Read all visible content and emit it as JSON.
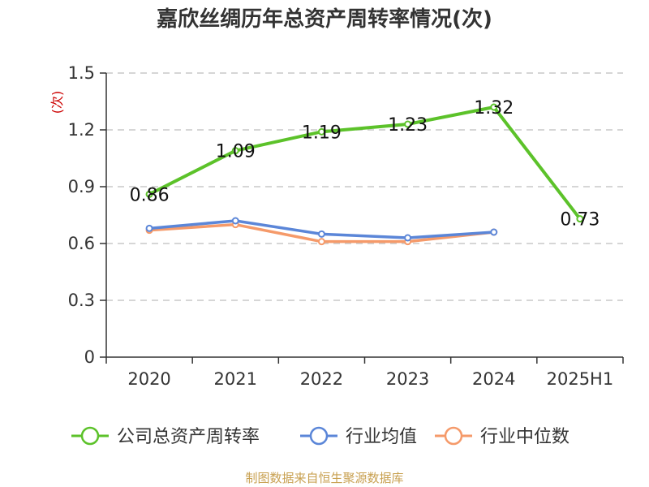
{
  "chart_data": {
    "type": "line",
    "title": "嘉欣丝绸历年总资产周转率情况(次)",
    "ylabel": "(次)",
    "xlabel": "",
    "categories": [
      "2020",
      "2021",
      "2022",
      "2023",
      "2024",
      "2025H1"
    ],
    "ylim": [
      0,
      1.5
    ],
    "yticks": [
      "0",
      "0.3",
      "0.6",
      "0.9",
      "1.2",
      "1.5"
    ],
    "grid": true,
    "legend_position": "bottom",
    "series": [
      {
        "name": "公司总资产周转率",
        "color": "#5cc22a",
        "values": [
          0.86,
          1.09,
          1.19,
          1.23,
          1.32,
          0.73
        ],
        "labels": [
          "0.86",
          "1.09",
          "1.19",
          "1.23",
          "1.32",
          "0.73"
        ]
      },
      {
        "name": "行业均值",
        "color": "#5b86d8",
        "values": [
          0.68,
          0.72,
          0.65,
          0.63,
          0.66,
          null
        ]
      },
      {
        "name": "行业中位数",
        "color": "#f59a6a",
        "values": [
          0.67,
          0.7,
          0.61,
          0.61,
          0.66,
          null
        ]
      }
    ]
  },
  "source": "制图数据来自恒生聚源数据库"
}
